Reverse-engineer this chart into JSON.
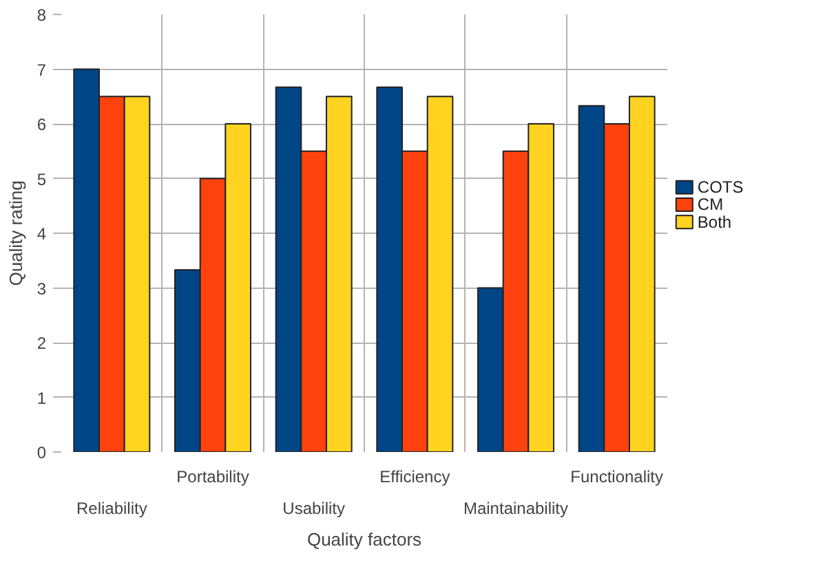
{
  "chart_data": {
    "type": "bar",
    "xlabel": "Quality factors",
    "ylabel": "Quality rating",
    "categories": [
      "Reliability",
      "Portability",
      "Usability",
      "Efficiency",
      "Maintainability",
      "Functionality"
    ],
    "series": [
      {
        "name": "COTS",
        "color": "#004586",
        "values": [
          7,
          3.33,
          6.67,
          6.67,
          3,
          6.33
        ]
      },
      {
        "name": "CM",
        "color": "#ff420e",
        "values": [
          6.5,
          5,
          5.5,
          5.5,
          5.5,
          6
        ]
      },
      {
        "name": "Both",
        "color": "#ffd320",
        "values": [
          6.5,
          6,
          6.5,
          6.5,
          6,
          6.5
        ]
      }
    ],
    "ylim": [
      0,
      8
    ],
    "yticks": [
      0,
      1,
      2,
      3,
      4,
      5,
      6,
      7,
      8
    ],
    "grid": true,
    "legend": "right"
  }
}
